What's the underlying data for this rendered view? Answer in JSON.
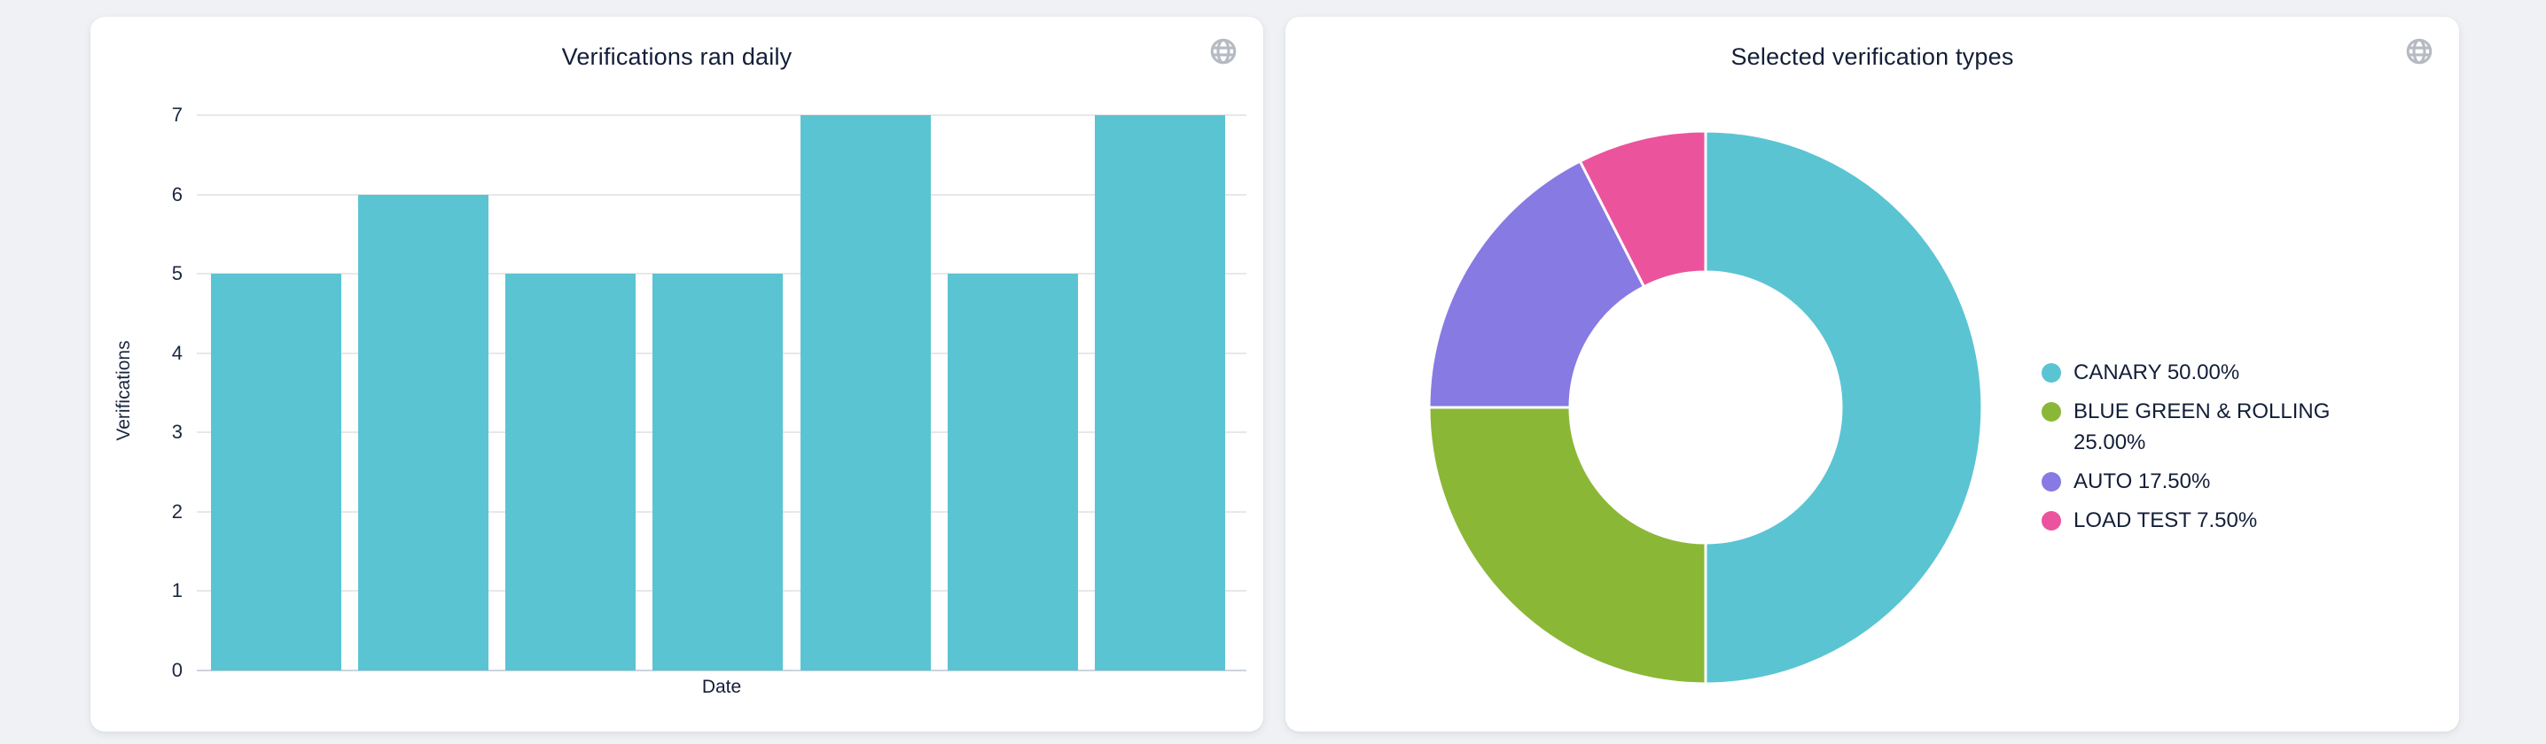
{
  "page": {
    "background_color": "#eff1f4",
    "card_background": "#ffffff",
    "text_color": "#131e38",
    "axis_text_color": "#1b2740",
    "gridline_color": "#e8e8e8",
    "axis_line_color": "#ced3de",
    "icon_color": "#b6bac2"
  },
  "cards": [
    {
      "title": "Verifications ran daily",
      "action_icon": "globe-icon"
    },
    {
      "title": "Selected verification types",
      "action_icon": "globe-icon"
    }
  ],
  "chart_data": [
    {
      "type": "bar",
      "title": "Verifications ran daily",
      "xlabel": "Date",
      "ylabel": "Verifications",
      "values": [
        5,
        6,
        5,
        5,
        7,
        5,
        7
      ],
      "ylim": [
        0,
        7
      ],
      "yticks": [
        0,
        1,
        2,
        3,
        4,
        5,
        6,
        7
      ],
      "x_tick_labels_visible": false,
      "bar_color": "#5bc4d2",
      "grid": true,
      "legend_position": "none"
    },
    {
      "type": "pie",
      "subtype": "donut",
      "title": "Selected verification types",
      "inner_radius_ratio": 0.49,
      "start_angle_deg": 0,
      "direction": "clockwise",
      "legend_position": "right",
      "slices": [
        {
          "label": "CANARY",
          "value_pct": 50.0,
          "display": "CANARY 50.00%",
          "color": "#5bc4d2"
        },
        {
          "label": "BLUE GREEN & ROLLING",
          "value_pct": 25.0,
          "display": "BLUE GREEN & ROLLING 25.00%",
          "color": "#8bb737"
        },
        {
          "label": "AUTO",
          "value_pct": 17.5,
          "display": "AUTO 17.50%",
          "color": "#877ae2"
        },
        {
          "label": "LOAD TEST",
          "value_pct": 7.5,
          "display": "LOAD TEST 7.50%",
          "color": "#eb549c"
        }
      ]
    }
  ]
}
